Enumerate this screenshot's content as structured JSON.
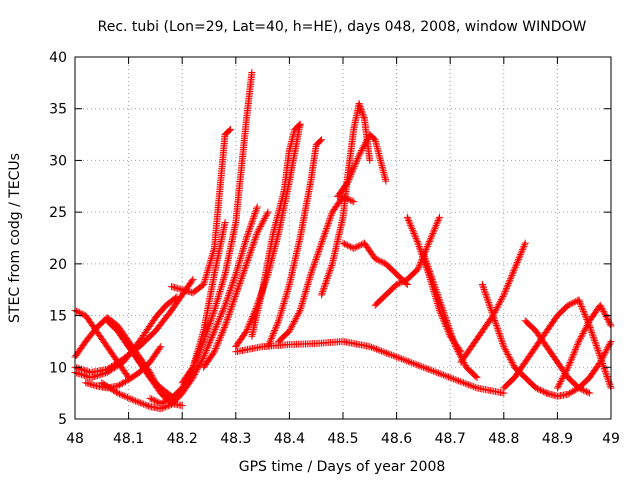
{
  "chart_data": {
    "type": "scatter",
    "title": "Rec. tubi (Lon=29, Lat=40, h=HE), days 048, 2008, window WINDOW",
    "xlabel": "GPS time / Days of year 2008",
    "ylabel": "STEC from codg / TECUs",
    "xlim": [
      48,
      49
    ],
    "ylim": [
      5,
      40
    ],
    "x_ticks": [
      "48",
      "48.1",
      "48.2",
      "48.3",
      "48.4",
      "48.5",
      "48.6",
      "48.7",
      "48.8",
      "48.9",
      "49"
    ],
    "y_ticks": [
      "5",
      "10",
      "15",
      "20",
      "25",
      "30",
      "35",
      "40"
    ],
    "grid": true,
    "marker": "+",
    "color": "#ff0000",
    "series": [
      {
        "x": [
          48.0,
          48.02,
          48.04,
          48.06,
          48.08,
          48.1
        ],
        "y": [
          15.5,
          15.0,
          13.5,
          12.0,
          10.5,
          9.0
        ]
      },
      {
        "x": [
          48.0,
          48.02,
          48.04,
          48.06,
          48.08,
          48.1,
          48.12,
          48.14,
          48.15
        ],
        "y": [
          11.0,
          12.5,
          13.8,
          14.8,
          14.0,
          12.5,
          11.0,
          9.5,
          8.5
        ]
      },
      {
        "x": [
          48.0,
          48.03,
          48.06,
          48.09,
          48.12,
          48.15,
          48.17,
          48.19
        ],
        "y": [
          9.5,
          9.0,
          9.5,
          10.5,
          12.5,
          14.8,
          16.0,
          16.8
        ]
      },
      {
        "x": [
          48.0,
          48.03,
          48.06,
          48.09,
          48.12,
          48.15,
          48.18,
          48.2,
          48.22
        ],
        "y": [
          10.0,
          9.5,
          9.8,
          10.8,
          12.0,
          13.5,
          15.5,
          17.0,
          18.5
        ]
      },
      {
        "x": [
          48.02,
          48.04,
          48.06,
          48.08,
          48.1,
          48.12,
          48.14,
          48.16
        ],
        "y": [
          8.5,
          8.2,
          8.0,
          8.2,
          8.8,
          9.5,
          10.5,
          12.0
        ]
      },
      {
        "x": [
          48.06,
          48.08,
          48.1,
          48.12,
          48.14,
          48.16,
          48.18
        ],
        "y": [
          14.5,
          13.5,
          12.0,
          10.5,
          9.0,
          8.0,
          7.2
        ]
      },
      {
        "x": [
          48.08,
          48.1,
          48.12,
          48.14,
          48.16,
          48.18,
          48.2
        ],
        "y": [
          13.5,
          12.0,
          10.5,
          9.0,
          7.5,
          6.5,
          6.3
        ]
      },
      {
        "x": [
          48.05,
          48.08,
          48.11,
          48.14,
          48.16,
          48.18,
          48.2,
          48.22
        ],
        "y": [
          8.5,
          7.5,
          6.8,
          6.2,
          6.0,
          6.4,
          7.5,
          9.0
        ]
      },
      {
        "x": [
          48.14,
          48.16,
          48.18,
          48.2,
          48.22,
          48.24,
          48.26,
          48.28
        ],
        "y": [
          7.0,
          6.5,
          7.0,
          8.0,
          10.0,
          13.5,
          19.0,
          24.0
        ]
      },
      {
        "x": [
          48.18,
          48.2,
          48.22,
          48.24,
          48.26,
          48.27,
          48.28,
          48.29
        ],
        "y": [
          17.8,
          17.5,
          17.2,
          18.0,
          21.5,
          27.0,
          32.5,
          33.0
        ]
      },
      {
        "x": [
          48.2,
          48.22,
          48.24,
          48.26,
          48.28,
          48.3,
          48.31,
          48.32,
          48.33
        ],
        "y": [
          8.5,
          10.0,
          12.5,
          15.5,
          19.0,
          24.0,
          29.0,
          34.0,
          38.5
        ]
      },
      {
        "x": [
          48.22,
          48.24,
          48.26,
          48.28,
          48.3,
          48.32,
          48.34
        ],
        "y": [
          9.0,
          11.0,
          13.5,
          16.0,
          19.0,
          22.5,
          25.5
        ]
      },
      {
        "x": [
          48.24,
          48.26,
          48.28,
          48.3,
          48.32,
          48.34,
          48.36
        ],
        "y": [
          10.0,
          11.5,
          14.0,
          17.0,
          20.0,
          23.0,
          25.0
        ]
      },
      {
        "x": [
          48.3,
          48.32,
          48.34,
          48.36,
          48.38,
          48.4,
          48.42
        ],
        "y": [
          12.0,
          13.5,
          16.0,
          19.0,
          23.0,
          28.0,
          33.5
        ]
      },
      {
        "x": [
          48.33,
          48.35,
          48.37,
          48.39,
          48.4,
          48.41,
          48.42
        ],
        "y": [
          13.0,
          17.5,
          23.0,
          27.0,
          31.0,
          33.0,
          33.5
        ]
      },
      {
        "x": [
          48.36,
          48.38,
          48.4,
          48.42,
          48.44,
          48.45,
          48.46
        ],
        "y": [
          12.0,
          14.5,
          18.0,
          22.5,
          28.0,
          31.5,
          32.0
        ]
      },
      {
        "x": [
          48.38,
          48.4,
          48.42,
          48.44,
          48.46,
          48.48,
          48.5,
          48.52
        ],
        "y": [
          12.5,
          13.5,
          15.5,
          19.0,
          22.0,
          25.0,
          26.5,
          26.0
        ]
      },
      {
        "x": [
          48.46,
          48.48,
          48.5,
          48.51,
          48.52,
          48.53,
          48.54,
          48.55
        ],
        "y": [
          17.0,
          20.0,
          24.5,
          29.0,
          33.0,
          35.5,
          34.0,
          30.0
        ]
      },
      {
        "x": [
          48.49,
          48.51,
          48.53,
          48.55,
          48.56,
          48.58
        ],
        "y": [
          26.5,
          28.0,
          30.5,
          32.5,
          32.0,
          28.0
        ]
      },
      {
        "x": [
          48.5,
          48.52,
          48.54,
          48.56,
          48.58,
          48.6,
          48.62
        ],
        "y": [
          22.0,
          21.5,
          22.0,
          20.5,
          20.0,
          19.0,
          18.0
        ]
      },
      {
        "x": [
          48.56,
          48.58,
          48.6,
          48.62,
          48.64,
          48.66,
          48.68
        ],
        "y": [
          16.0,
          17.0,
          18.0,
          18.5,
          19.5,
          22.0,
          24.5
        ]
      },
      {
        "x": [
          48.62,
          48.64,
          48.66,
          48.68,
          48.7,
          48.72
        ],
        "y": [
          24.5,
          22.0,
          19.0,
          15.5,
          13.0,
          11.5
        ]
      },
      {
        "x": [
          48.65,
          48.67,
          48.69,
          48.71,
          48.73,
          48.75
        ],
        "y": [
          21.0,
          18.0,
          15.0,
          12.0,
          10.0,
          9.0
        ]
      },
      {
        "x": [
          48.72,
          48.74,
          48.76,
          48.78,
          48.8,
          48.82,
          48.84
        ],
        "y": [
          10.5,
          12.0,
          13.5,
          15.0,
          17.0,
          19.5,
          22.0
        ]
      },
      {
        "x": [
          48.76,
          48.78,
          48.8,
          48.82,
          48.84,
          48.86,
          48.88
        ],
        "y": [
          18.0,
          15.0,
          12.0,
          10.0,
          9.0,
          8.0,
          7.5
        ]
      },
      {
        "x": [
          48.8,
          48.82,
          48.84,
          48.86,
          48.88,
          48.9,
          48.92,
          48.94
        ],
        "y": [
          8.0,
          9.0,
          10.5,
          12.0,
          13.5,
          15.0,
          16.0,
          16.5
        ]
      },
      {
        "x": [
          48.84,
          48.86,
          48.88,
          48.9,
          48.92,
          48.94,
          48.96
        ],
        "y": [
          14.5,
          13.5,
          12.0,
          10.5,
          9.0,
          8.0,
          7.5
        ]
      },
      {
        "x": [
          48.9,
          48.92,
          48.94,
          48.96,
          48.98,
          49.0
        ],
        "y": [
          8.0,
          10.0,
          12.5,
          14.5,
          16.0,
          14.0
        ]
      },
      {
        "x": [
          48.88,
          48.9,
          48.92,
          48.94,
          48.96,
          48.98,
          49.0
        ],
        "y": [
          7.5,
          7.2,
          7.4,
          8.0,
          9.0,
          10.5,
          12.5
        ]
      },
      {
        "x": [
          48.94,
          48.96,
          48.98,
          49.0
        ],
        "y": [
          16.5,
          14.0,
          11.0,
          8.0
        ]
      },
      {
        "x": [
          48.3,
          48.35,
          48.4,
          48.45,
          48.5,
          48.55,
          48.6,
          48.65,
          48.7,
          48.75,
          48.8
        ],
        "y": [
          11.5,
          12.0,
          12.2,
          12.3,
          12.5,
          12.0,
          11.0,
          10.0,
          9.0,
          8.0,
          7.5
        ]
      }
    ]
  }
}
